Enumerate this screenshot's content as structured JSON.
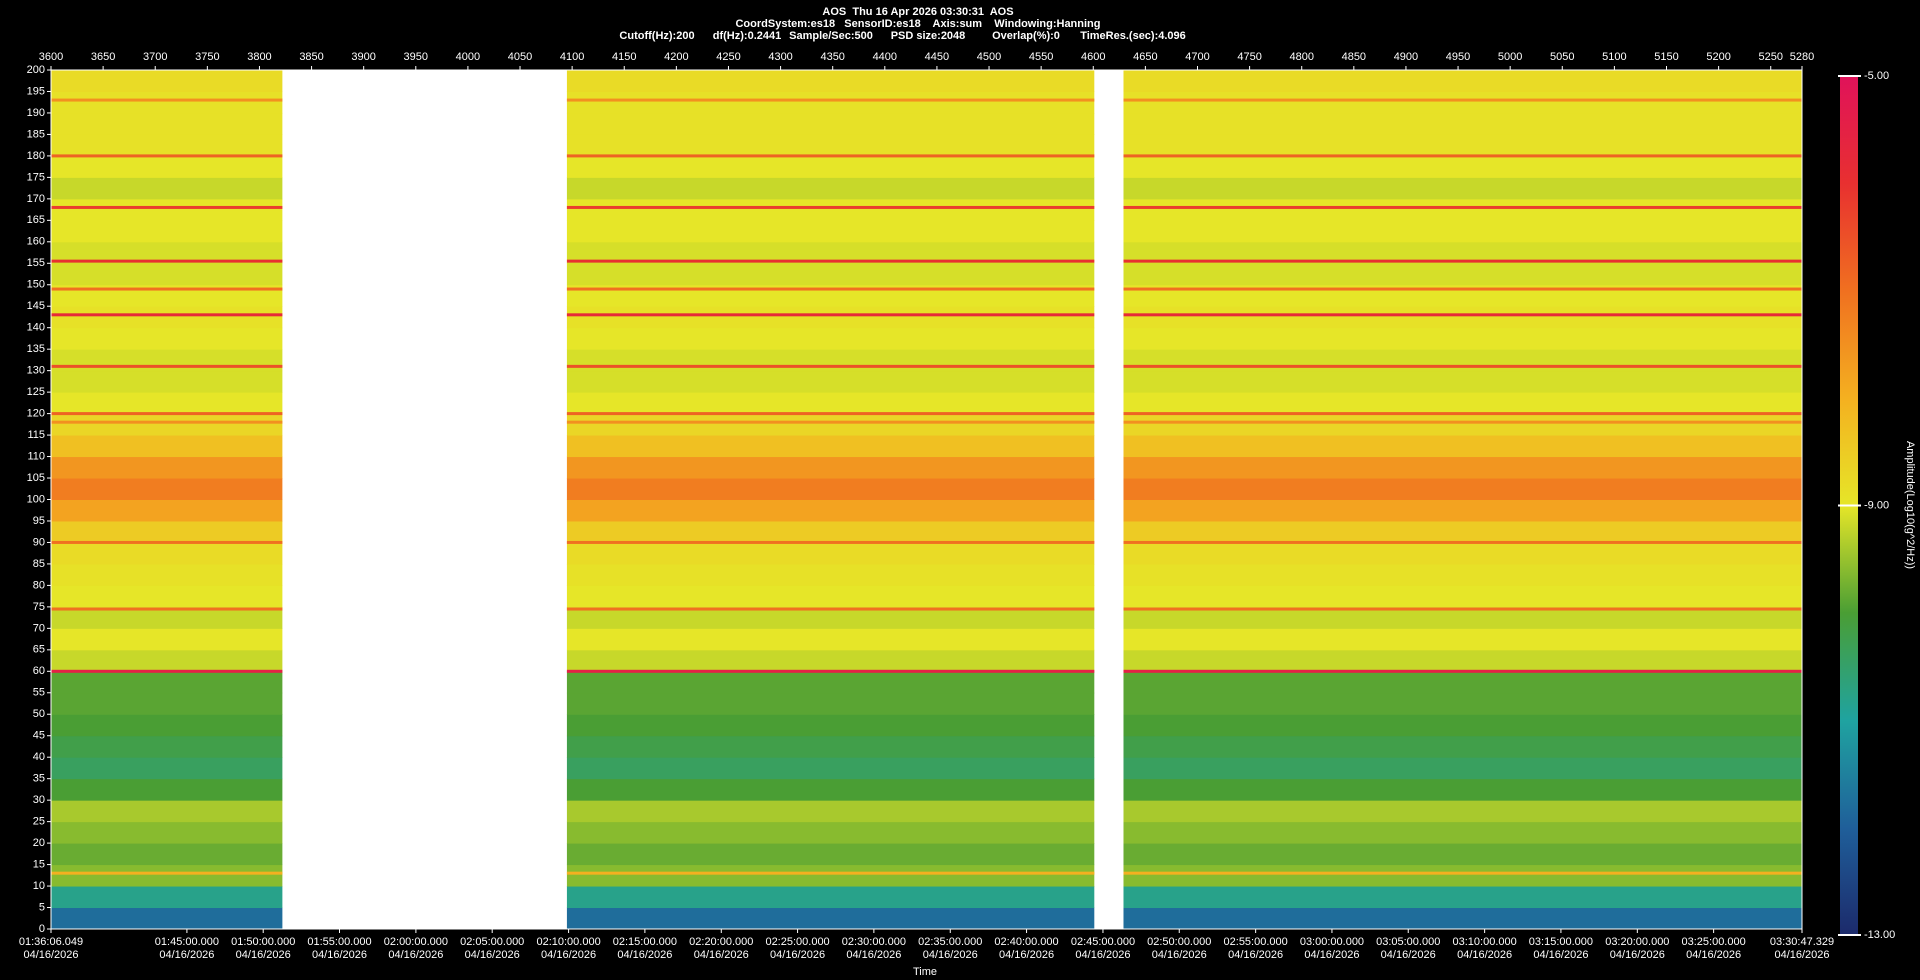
{
  "chart_data": {
    "type": "spectrogram",
    "title": "AOS  Thu 16 Apr 2026 03:30:31  AOS",
    "subtitle": "CoordSystem:es18   SensorID:es18    Axis:sum    Windowing:Hanning",
    "parameters": [
      "Cutoff(Hz):200",
      "df(Hz):0.2441",
      "Sample/Sec:500",
      "PSD size:2048",
      "Overlap(%):0",
      "TimeRes.(sec):4.096"
    ],
    "xlabel": "Time",
    "colorbar_label": "Amplitude(Log10(g^2/Hz))",
    "xlim": [
      3600,
      5280
    ],
    "xticks": [
      3600,
      3650,
      3700,
      3750,
      3800,
      3850,
      3900,
      3950,
      4000,
      4050,
      4100,
      4150,
      4200,
      4250,
      4300,
      4350,
      4400,
      4450,
      4500,
      4550,
      4600,
      4650,
      4700,
      4750,
      4800,
      4850,
      4900,
      4950,
      5000,
      5050,
      5100,
      5150,
      5200,
      5250,
      5280
    ],
    "time_ticks": [
      {
        "value": 3600,
        "label": "01:36:06.049\n04/16/2026"
      },
      {
        "value": 3730.4,
        "label": "01:45:00.000\n04/16/2026"
      },
      {
        "value": 3803.6,
        "label": "01:50:00.000\n04/16/2026"
      },
      {
        "value": 3876.8,
        "label": "01:55:00.000\n04/16/2026"
      },
      {
        "value": 3950.1,
        "label": "02:00:00.000\n04/16/2026"
      },
      {
        "value": 4023.3,
        "label": "02:05:00.000\n04/16/2026"
      },
      {
        "value": 4096.6,
        "label": "02:10:00.000\n04/16/2026"
      },
      {
        "value": 4169.8,
        "label": "02:15:00.000\n04/16/2026"
      },
      {
        "value": 4243.1,
        "label": "02:20:00.000\n04/16/2026"
      },
      {
        "value": 4316.3,
        "label": "02:25:00.000\n04/16/2026"
      },
      {
        "value": 4389.5,
        "label": "02:30:00.000\n04/16/2026"
      },
      {
        "value": 4462.8,
        "label": "02:35:00.000\n04/16/2026"
      },
      {
        "value": 4536.0,
        "label": "02:40:00.000\n04/16/2026"
      },
      {
        "value": 4609.3,
        "label": "02:45:00.000\n04/16/2026"
      },
      {
        "value": 4682.5,
        "label": "02:50:00.000\n04/16/2026"
      },
      {
        "value": 4755.8,
        "label": "02:55:00.000\n04/16/2026"
      },
      {
        "value": 4829.0,
        "label": "03:00:00.000\n04/16/2026"
      },
      {
        "value": 4902.2,
        "label": "03:05:00.000\n04/16/2026"
      },
      {
        "value": 4975.5,
        "label": "03:10:00.000\n04/16/2026"
      },
      {
        "value": 5048.7,
        "label": "03:15:00.000\n04/16/2026"
      },
      {
        "value": 5122.0,
        "label": "03:20:00.000\n04/16/2026"
      },
      {
        "value": 5195.2,
        "label": "03:25:00.000\n04/16/2026"
      },
      {
        "value": 5280,
        "label": "03:30:47.329\n04/16/2026"
      }
    ],
    "ylim": [
      0,
      200
    ],
    "yticks": [
      0,
      5,
      10,
      15,
      20,
      25,
      30,
      35,
      40,
      45,
      50,
      55,
      60,
      65,
      70,
      75,
      80,
      85,
      90,
      95,
      100,
      105,
      110,
      115,
      120,
      125,
      130,
      135,
      140,
      145,
      150,
      155,
      160,
      165,
      170,
      175,
      180,
      185,
      190,
      195,
      200
    ],
    "zlim": [
      -13,
      -5
    ],
    "zticks": [
      {
        "value": -13,
        "label": "-13.00"
      },
      {
        "value": -9,
        "label": "-9.00"
      },
      {
        "value": -5,
        "label": "-5.00"
      }
    ],
    "colormap": [
      "#1c2a6b",
      "#1f5f9a",
      "#1fa3a0",
      "#4a9e34",
      "#e6e628",
      "#f4b020",
      "#f07020",
      "#e83030",
      "#e0125a"
    ],
    "segments": [
      [
        3600,
        3822
      ],
      [
        4095,
        4601
      ],
      [
        4629,
        5280
      ]
    ],
    "bins": [
      0,
      5,
      10,
      15,
      20,
      25,
      30,
      35,
      40,
      45,
      50,
      55,
      60,
      65,
      70,
      75,
      80,
      85,
      90,
      95,
      100,
      105,
      110,
      115,
      120,
      125,
      130,
      135,
      140,
      145,
      150,
      155,
      160,
      165,
      170,
      175,
      180,
      185,
      190,
      195,
      200
    ],
    "amplitude": [
      -11.8,
      -10.8,
      -9.6,
      -9.8,
      -9.6,
      -9.4,
      -10.0,
      -10.4,
      -10.2,
      -10.0,
      -9.9,
      -9.9,
      -9.2,
      -9.0,
      -9.2,
      -9.0,
      -8.9,
      -8.8,
      -8.5,
      -7.8,
      -7.2,
      -7.6,
      -8.3,
      -8.7,
      -9.0,
      -9.1,
      -9.1,
      -9.0,
      -8.9,
      -9.0,
      -9.1,
      -9.1,
      -9.0,
      -9.0,
      -9.2,
      -9.0,
      -8.9,
      -8.9,
      -8.9,
      -8.8
    ],
    "line_frequencies": [
      13,
      60,
      74.5,
      90,
      118,
      120,
      131,
      143,
      149,
      155.5,
      168,
      180,
      193
    ],
    "line_amplitudes": [
      -8.0,
      -5.5,
      -7.0,
      -7.0,
      -7.5,
      -6.8,
      -6.5,
      -5.8,
      -7.0,
      -6.0,
      -6.2,
      -6.8,
      -7.5
    ]
  }
}
